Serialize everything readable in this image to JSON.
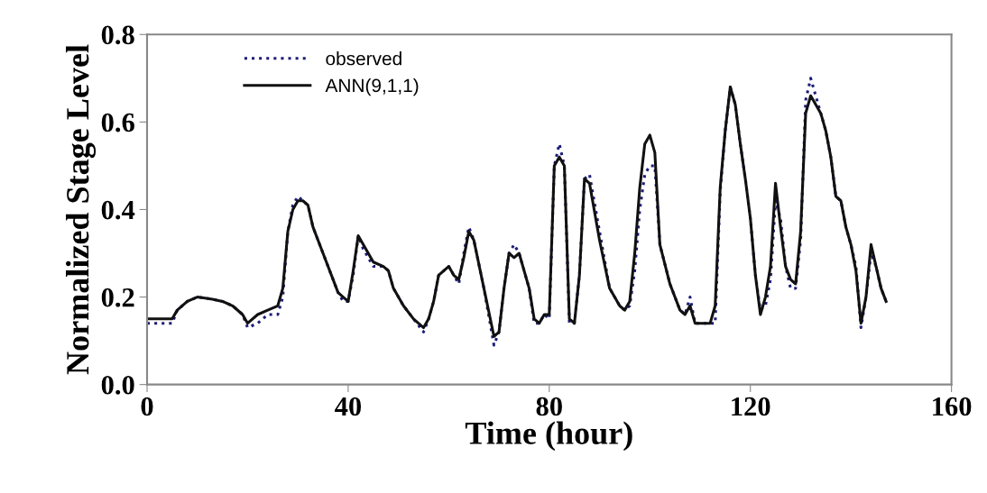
{
  "chart_data": {
    "type": "line",
    "xlabel": "Time (hour)",
    "ylabel": "Normalized Stage Level",
    "xlim": [
      0,
      160
    ],
    "xticks": [
      0,
      40,
      80,
      120,
      160
    ],
    "ylim": [
      0,
      0.8
    ],
    "yticks": [
      {
        "value": 0,
        "label": "0.0"
      },
      0.2,
      0.4,
      0.6,
      0.8
    ],
    "grid": false,
    "legend": "top left",
    "marker": "none",
    "series": [
      {
        "name": "observed",
        "color": "#1c1c78",
        "line_style": "dotted",
        "x": [
          0,
          2,
          5,
          6,
          8,
          10,
          13,
          15,
          17,
          19,
          20,
          22,
          24,
          26,
          27,
          28,
          29,
          30,
          31,
          32,
          33,
          35,
          37,
          38,
          39,
          40,
          41,
          42,
          43,
          45,
          47,
          48,
          49,
          51,
          53,
          55,
          56,
          57,
          58,
          60,
          61,
          62,
          63,
          64,
          65,
          67,
          69,
          70,
          71,
          72,
          73,
          74,
          76,
          77,
          78,
          79,
          80,
          81,
          82,
          83,
          84,
          85,
          86,
          87,
          88,
          90,
          92,
          94,
          95,
          96,
          97,
          98,
          99,
          100,
          101,
          102,
          104,
          106,
          107,
          108,
          109,
          110,
          112,
          113,
          114,
          115,
          116,
          117,
          118,
          119,
          120,
          121,
          122,
          123,
          124,
          125,
          126,
          127,
          128,
          129,
          130,
          131,
          132,
          134,
          135,
          136,
          137,
          138,
          139,
          140,
          141,
          142,
          143,
          144,
          145,
          146,
          147
        ],
        "values": [
          0.14,
          0.14,
          0.14,
          0.17,
          0.19,
          0.2,
          0.195,
          0.19,
          0.18,
          0.16,
          0.13,
          0.14,
          0.16,
          0.16,
          0.2,
          0.35,
          0.41,
          0.43,
          0.42,
          0.41,
          0.36,
          0.3,
          0.24,
          0.21,
          0.19,
          0.19,
          0.25,
          0.34,
          0.31,
          0.27,
          0.27,
          0.26,
          0.22,
          0.18,
          0.15,
          0.12,
          0.15,
          0.19,
          0.25,
          0.27,
          0.25,
          0.23,
          0.3,
          0.36,
          0.33,
          0.22,
          0.09,
          0.12,
          0.22,
          0.3,
          0.32,
          0.3,
          0.22,
          0.14,
          0.14,
          0.16,
          0.15,
          0.5,
          0.55,
          0.5,
          0.14,
          0.14,
          0.25,
          0.47,
          0.48,
          0.35,
          0.22,
          0.18,
          0.17,
          0.18,
          0.26,
          0.4,
          0.48,
          0.5,
          0.5,
          0.32,
          0.23,
          0.17,
          0.16,
          0.2,
          0.14,
          0.14,
          0.14,
          0.14,
          0.44,
          0.58,
          0.68,
          0.64,
          0.55,
          0.47,
          0.38,
          0.25,
          0.17,
          0.18,
          0.24,
          0.42,
          0.38,
          0.27,
          0.22,
          0.22,
          0.33,
          0.65,
          0.7,
          0.62,
          0.58,
          0.52,
          0.43,
          0.42,
          0.36,
          0.32,
          0.27,
          0.13,
          0.2,
          0.3,
          0.27,
          0.22,
          0.19
        ]
      },
      {
        "name": "ANN(9,1,1)",
        "color": "#111111",
        "line_style": "solid",
        "x": [
          0,
          2,
          5,
          6,
          8,
          10,
          13,
          15,
          17,
          19,
          20,
          22,
          24,
          26,
          27,
          28,
          29,
          30,
          31,
          32,
          33,
          35,
          37,
          38,
          39,
          40,
          41,
          42,
          43,
          45,
          47,
          48,
          49,
          51,
          53,
          55,
          56,
          57,
          58,
          60,
          61,
          62,
          63,
          64,
          65,
          67,
          69,
          70,
          71,
          72,
          73,
          74,
          76,
          77,
          78,
          79,
          80,
          81,
          82,
          83,
          84,
          85,
          86,
          87,
          88,
          90,
          92,
          94,
          95,
          96,
          97,
          98,
          99,
          100,
          101,
          102,
          104,
          106,
          107,
          108,
          109,
          110,
          112,
          113,
          114,
          115,
          116,
          117,
          118,
          119,
          120,
          121,
          122,
          123,
          124,
          125,
          126,
          127,
          128,
          129,
          130,
          131,
          132,
          134,
          135,
          136,
          137,
          138,
          139,
          140,
          141,
          142,
          143,
          144,
          145,
          146,
          147
        ],
        "values": [
          0.15,
          0.15,
          0.15,
          0.17,
          0.19,
          0.2,
          0.195,
          0.19,
          0.18,
          0.16,
          0.14,
          0.16,
          0.17,
          0.18,
          0.22,
          0.35,
          0.4,
          0.42,
          0.42,
          0.41,
          0.36,
          0.3,
          0.24,
          0.21,
          0.2,
          0.19,
          0.26,
          0.34,
          0.32,
          0.28,
          0.27,
          0.26,
          0.22,
          0.18,
          0.15,
          0.13,
          0.15,
          0.19,
          0.25,
          0.27,
          0.25,
          0.24,
          0.29,
          0.35,
          0.33,
          0.22,
          0.11,
          0.12,
          0.22,
          0.3,
          0.29,
          0.3,
          0.22,
          0.15,
          0.14,
          0.16,
          0.16,
          0.5,
          0.52,
          0.5,
          0.15,
          0.14,
          0.25,
          0.47,
          0.46,
          0.33,
          0.22,
          0.18,
          0.17,
          0.19,
          0.3,
          0.45,
          0.55,
          0.57,
          0.53,
          0.32,
          0.23,
          0.17,
          0.16,
          0.18,
          0.14,
          0.14,
          0.14,
          0.18,
          0.45,
          0.58,
          0.68,
          0.64,
          0.55,
          0.47,
          0.38,
          0.25,
          0.16,
          0.2,
          0.27,
          0.46,
          0.36,
          0.27,
          0.24,
          0.23,
          0.35,
          0.62,
          0.66,
          0.62,
          0.58,
          0.52,
          0.43,
          0.42,
          0.36,
          0.32,
          0.26,
          0.14,
          0.2,
          0.32,
          0.27,
          0.22,
          0.19
        ]
      }
    ]
  }
}
